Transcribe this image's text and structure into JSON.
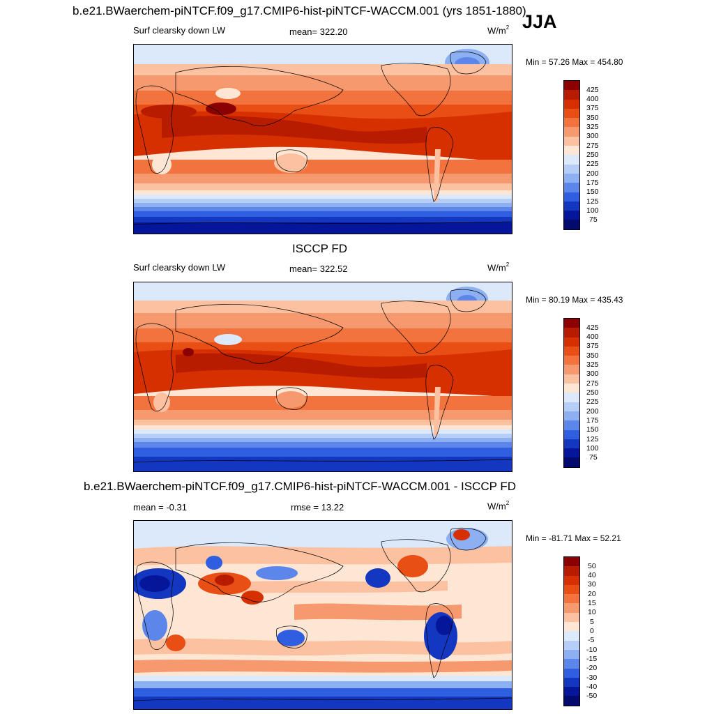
{
  "header": {
    "title": "b.e21.BWaerchem-piNTCF.f09_g17.CMIP6-hist-piNTCF-WACCM.001 (yrs 1851-1880)",
    "season": "JJA"
  },
  "panels": [
    {
      "id": "model",
      "title": "",
      "left_label": "Surf clearsky down LW",
      "center_label": "mean= 322.20",
      "units": "W/m",
      "units_sup": "2",
      "minmax": "Min =  57.26 Max = 454.80",
      "levels": [
        "425",
        "400",
        "375",
        "350",
        "325",
        "300",
        "275",
        "250",
        "225",
        "200",
        "175",
        "150",
        "125",
        "100",
        "75"
      ],
      "colors": [
        "#8b0000",
        "#b71c00",
        "#d63000",
        "#e94e14",
        "#f2733d",
        "#f7996e",
        "#fbc1a0",
        "#fde6d3",
        "#dce9fb",
        "#b6cef7",
        "#8db0f2",
        "#5d86ea",
        "#2f5fe0",
        "#1437c2",
        "#06169a",
        "#020a6e"
      ]
    },
    {
      "id": "obs",
      "title": "ISCCP FD",
      "left_label": "Surf clearsky down LW",
      "center_label": "mean= 322.52",
      "units": "W/m",
      "units_sup": "2",
      "minmax": "Min =  80.19 Max = 435.43",
      "levels": [
        "425",
        "400",
        "375",
        "350",
        "325",
        "300",
        "275",
        "250",
        "225",
        "200",
        "175",
        "150",
        "125",
        "100",
        "75"
      ],
      "colors": [
        "#8b0000",
        "#b71c00",
        "#d63000",
        "#e94e14",
        "#f2733d",
        "#f7996e",
        "#fbc1a0",
        "#fde6d3",
        "#dce9fb",
        "#b6cef7",
        "#8db0f2",
        "#5d86ea",
        "#2f5fe0",
        "#1437c2",
        "#06169a",
        "#020a6e"
      ]
    },
    {
      "id": "diff",
      "title": "b.e21.BWaerchem-piNTCF.f09_g17.CMIP6-hist-piNTCF-WACCM.001 - ISCCP FD",
      "left_label": "mean =  -0.31",
      "center_label": "rmse =  13.22",
      "units": "W/m",
      "units_sup": "2",
      "minmax": "Min = -81.71 Max =  52.21",
      "levels": [
        "50",
        "40",
        "30",
        "20",
        "15",
        "10",
        "5",
        "0",
        "-5",
        "-10",
        "-15",
        "-20",
        "-30",
        "-40",
        "-50"
      ],
      "colors": [
        "#8b0000",
        "#b71c00",
        "#d63000",
        "#e94e14",
        "#f2733d",
        "#f7996e",
        "#fbc1a0",
        "#fde6d3",
        "#dce9fb",
        "#b6cef7",
        "#8db0f2",
        "#5d86ea",
        "#2f5fe0",
        "#1437c2",
        "#06169a",
        "#020a6e"
      ]
    }
  ]
}
